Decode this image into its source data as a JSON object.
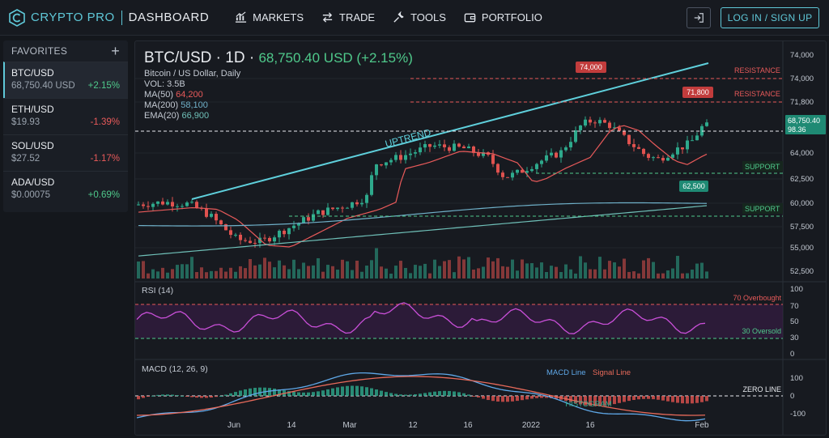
{
  "header": {
    "brand": "CRYPTO PRO",
    "page": "DASHBOARD",
    "nav": [
      {
        "label": "MARKETS",
        "icon": "chart-bars-icon"
      },
      {
        "label": "TRADE",
        "icon": "swap-arrows-icon"
      },
      {
        "label": "TOOLS",
        "icon": "wrench-icon"
      },
      {
        "label": "PORTFOLIO",
        "icon": "wallet-icon"
      }
    ],
    "login_label": "LOG IN / SIGN UP",
    "accent": "#5fc8d8"
  },
  "favorites": {
    "title": "FAVORITES",
    "add": "+",
    "items": [
      {
        "symbol": "BTC/USD",
        "price": "68,750.40 USD",
        "change": "+2.15%",
        "dir": "up"
      },
      {
        "symbol": "ETH/USD",
        "price": "$19.93",
        "change": "-1.39%",
        "dir": "down"
      },
      {
        "symbol": "SOL/USD",
        "price": "$27.52",
        "change": "-1.17%",
        "dir": "down"
      },
      {
        "symbol": "ADA/USD",
        "price": "$0.00075",
        "change": "+0.69%",
        "dir": "up"
      }
    ]
  },
  "chart": {
    "title_pair": "BTC/USD · 1D · ",
    "title_price": "68,750.40 USD (+2.15%)",
    "subtitle": "Bitcoin / US Dollar, Daily",
    "vol": "VOL: 3.5B",
    "ma50_label": "MA(50)",
    "ma50_value": "64,200",
    "ma200_label": "MA(200)",
    "ma200_value": "58,100",
    "ema20_label": "EMA(20)",
    "ema20_value": "66,900",
    "price_ticks": [
      "74,000",
      "74,000",
      "71,800",
      "68,750.40",
      "98.36",
      "64,000",
      "62,500",
      "60,000",
      "57,500",
      "55,000",
      "52,500"
    ],
    "annotations": {
      "uptrend": "UPTREND",
      "resistance": "RESISTANCE",
      "support": "SUPPORT",
      "callout_high": "74,000",
      "callout_mid": "71,800",
      "callout_low": "62,500"
    },
    "x_ticks": [
      "Jun",
      "14",
      "Mar",
      "12",
      "16",
      "2022",
      "16",
      "Feb"
    ],
    "up_color": "#2ea98c",
    "down_color": "#e0524f"
  },
  "rsi": {
    "label": "RSI (14)",
    "overbought": "70 Overbought",
    "oversold": "30 Oversold",
    "ticks": [
      "100",
      "70",
      "50",
      "30",
      "0"
    ],
    "color": "#c94fd8"
  },
  "macd": {
    "label": "MACD (12, 26, 9)",
    "macd_line": "MACD Line",
    "signal_line": "Signal Line",
    "histogram": "HISTOGRAM",
    "zero_line": "ZERO LINE",
    "ticks": [
      "100",
      "0",
      "-100"
    ]
  }
}
